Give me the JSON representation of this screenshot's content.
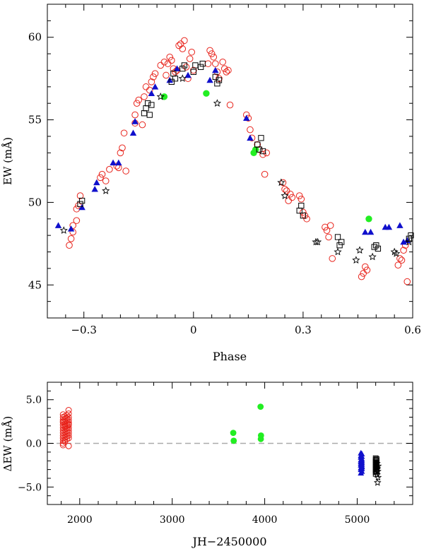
{
  "chart_data": [
    {
      "type": "scatter",
      "xlabel": "Phase",
      "ylabel": "EW (mÅ)",
      "xlim": [
        -0.4,
        0.6
      ],
      "ylim": [
        43,
        62
      ],
      "xticks": [
        -0.3,
        0,
        0.3,
        0.6
      ],
      "xtick_labels": [
        "−0.3",
        "0",
        "0.3",
        "0.6"
      ],
      "yticks": [
        45,
        50,
        55,
        60
      ],
      "ytick_labels": [
        "45",
        "50",
        "55",
        "60"
      ],
      "grid": false,
      "series": [
        {
          "name": "Set 1 (open red circles)",
          "marker": "circle-open",
          "color": "#e8241c",
          "x": [
            -0.34,
            -0.335,
            -0.33,
            -0.33,
            -0.32,
            -0.32,
            -0.315,
            -0.31,
            -0.255,
            -0.25,
            -0.24,
            -0.23,
            -0.21,
            -0.205,
            -0.2,
            -0.195,
            -0.19,
            -0.185,
            -0.16,
            -0.16,
            -0.155,
            -0.15,
            -0.14,
            -0.135,
            -0.13,
            -0.12,
            -0.115,
            -0.11,
            -0.105,
            -0.09,
            -0.08,
            -0.075,
            -0.07,
            -0.065,
            -0.06,
            -0.055,
            -0.05,
            -0.045,
            -0.04,
            -0.035,
            -0.03,
            -0.025,
            -0.02,
            -0.015,
            -0.01,
            -0.005,
            0.0,
            0.04,
            0.045,
            0.05,
            0.055,
            0.06,
            0.065,
            0.07,
            0.08,
            0.085,
            0.09,
            0.095,
            0.1,
            0.145,
            0.15,
            0.155,
            0.16,
            0.175,
            0.18,
            0.19,
            0.195,
            0.2,
            0.245,
            0.25,
            0.255,
            0.26,
            0.265,
            0.27,
            0.29,
            0.295,
            0.3,
            0.305,
            0.31,
            0.36,
            0.365,
            0.37,
            0.375,
            0.38,
            0.46,
            0.465,
            0.47,
            0.475,
            0.56,
            0.565,
            0.57,
            0.575,
            0.58,
            0.585
          ],
          "y": [
            47.4,
            47.8,
            48.2,
            48.6,
            48.9,
            49.6,
            49.8,
            50.4,
            51.5,
            51.7,
            51.3,
            52.0,
            52.2,
            52.1,
            53.0,
            53.3,
            54.2,
            51.9,
            55.3,
            54.8,
            56.0,
            56.2,
            54.7,
            56.4,
            57.0,
            56.8,
            57.3,
            57.6,
            57.8,
            58.3,
            58.5,
            57.7,
            58.4,
            58.8,
            58.6,
            58.1,
            57.9,
            58.0,
            59.5,
            59.6,
            59.3,
            59.8,
            58.2,
            57.5,
            58.7,
            59.1,
            58.0,
            58.4,
            59.2,
            59.0,
            58.8,
            58.4,
            57.9,
            57.5,
            58.5,
            58.1,
            57.9,
            58.0,
            55.9,
            55.3,
            55.1,
            54.4,
            53.9,
            53.5,
            53.2,
            52.9,
            51.7,
            53.0,
            51.2,
            50.8,
            50.7,
            50.1,
            50.5,
            50.3,
            50.4,
            50.2,
            49.4,
            49.2,
            49.0,
            48.5,
            48.3,
            47.9,
            48.6,
            46.6,
            45.5,
            45.7,
            46.1,
            45.9,
            46.2,
            46.6,
            46.5,
            47.1,
            47.4,
            45.2
          ],
          "positions_approximate": true
        },
        {
          "name": "Set 2 (filled green circles)",
          "marker": "circle-filled",
          "color": "#22ee22",
          "x": [
            -0.08,
            0.035,
            0.165,
            0.17,
            0.48
          ],
          "y": [
            56.4,
            56.6,
            53.0,
            53.2,
            49.0
          ]
        },
        {
          "name": "Set 3 (filled blue triangles)",
          "marker": "triangle-filled",
          "color": "#1010cc",
          "x": [
            -0.37,
            -0.335,
            -0.305,
            -0.27,
            -0.265,
            -0.205,
            -0.22,
            -0.165,
            -0.16,
            -0.115,
            -0.105,
            -0.065,
            -0.045,
            -0.015,
            0.06,
            0.045,
            0.145,
            0.155,
            0.47,
            0.485,
            0.525,
            0.535,
            0.565,
            0.575,
            0.585
          ],
          "y": [
            48.6,
            48.4,
            49.7,
            50.8,
            51.2,
            52.4,
            52.4,
            54.2,
            54.9,
            56.6,
            57.0,
            57.4,
            58.1,
            57.7,
            58.0,
            57.4,
            55.1,
            53.9,
            48.2,
            48.2,
            48.5,
            48.5,
            48.6,
            47.6,
            47.7
          ],
          "positions_approximate": true
        },
        {
          "name": "Set 4 (open black squares)",
          "marker": "square-open",
          "color": "#000000",
          "x": [
            -0.31,
            -0.305,
            -0.135,
            -0.13,
            -0.125,
            -0.12,
            -0.115,
            -0.06,
            -0.055,
            -0.05,
            -0.03,
            -0.025,
            0.0,
            0.005,
            0.02,
            0.025,
            0.06,
            0.065,
            0.07,
            0.175,
            0.18,
            0.185,
            0.19,
            0.29,
            0.295,
            0.3,
            0.395,
            0.4,
            0.405,
            0.495,
            0.5,
            0.505,
            0.59,
            0.595
          ],
          "y": [
            49.9,
            50.1,
            55.4,
            55.7,
            56.0,
            55.3,
            55.9,
            57.3,
            57.8,
            57.5,
            58.1,
            58.3,
            57.9,
            58.3,
            58.2,
            58.4,
            57.6,
            57.2,
            57.4,
            53.5,
            53.2,
            53.9,
            53.1,
            49.5,
            49.8,
            49.2,
            47.9,
            47.4,
            47.6,
            47.3,
            47.4,
            47.2,
            47.8,
            48.0
          ],
          "positions_approximate": true
        },
        {
          "name": "Set 5 (open black stars)",
          "marker": "star-open",
          "color": "#000000",
          "x": [
            -0.355,
            -0.24,
            -0.09,
            -0.03,
            0.065,
            0.24,
            0.25,
            0.335,
            0.34,
            0.395,
            0.445,
            0.455,
            0.49,
            0.55,
            0.555,
            0.59
          ],
          "y": [
            48.3,
            50.7,
            56.4,
            57.5,
            56.0,
            51.2,
            50.4,
            47.6,
            47.6,
            47.0,
            46.5,
            47.1,
            46.7,
            47.0,
            46.9,
            47.6
          ],
          "positions_approximate": true
        }
      ]
    },
    {
      "type": "scatter",
      "xlabel": "JH−2450000",
      "ylabel": "ΔEW (mÅ)",
      "xlim": [
        1650,
        5600
      ],
      "ylim": [
        -7,
        7
      ],
      "xticks": [
        2000,
        3000,
        4000,
        5000
      ],
      "xtick_labels": [
        "2000",
        "3000",
        "4000",
        "5000"
      ],
      "yticks": [
        -5,
        0,
        5
      ],
      "ytick_labels": [
        "−5.0",
        "0.0",
        "5.0"
      ],
      "reference_line": {
        "y": 0,
        "style": "dashed",
        "color": "#aaaaaa"
      },
      "grid": false,
      "series": [
        {
          "name": "Set 1 (open red circles)",
          "marker": "circle-open",
          "color": "#e8241c",
          "x": [
            1820,
            1820,
            1820,
            1820,
            1820,
            1820,
            1820,
            1820,
            1820,
            1820,
            1820,
            1820,
            1820,
            1820,
            1840,
            1840,
            1840,
            1840,
            1840,
            1840,
            1840,
            1840,
            1840,
            1840,
            1840,
            1840,
            1860,
            1860,
            1860,
            1860,
            1860,
            1860,
            1860,
            1860,
            1860,
            1860,
            1880,
            1880,
            1880,
            1880,
            1880,
            1880,
            1880,
            1880,
            1880,
            1880,
            1880,
            1880,
            1880
          ],
          "y": [
            3.0,
            2.7,
            2.4,
            2.1,
            1.8,
            1.5,
            1.2,
            0.9,
            0.6,
            0.3,
            0.0,
            -0.2,
            3.3,
            2.5,
            3.1,
            2.8,
            2.5,
            2.2,
            1.9,
            1.6,
            1.3,
            1.0,
            0.7,
            0.4,
            0.2,
            2.0,
            2.9,
            2.6,
            2.3,
            2.0,
            1.7,
            1.4,
            1.1,
            0.8,
            0.5,
            3.2,
            3.8,
            3.4,
            3.0,
            2.7,
            2.4,
            2.1,
            1.8,
            1.5,
            1.2,
            0.9,
            0.6,
            -0.3,
            2.2
          ],
          "positions_approximate": true
        },
        {
          "name": "Set 2 (filled green circles)",
          "marker": "circle-filled",
          "color": "#22ee22",
          "x": [
            3660,
            3665,
            3955,
            3960,
            3958
          ],
          "y": [
            1.2,
            0.3,
            4.2,
            0.9,
            0.5
          ]
        },
        {
          "name": "Set 3 (filled blue triangles)",
          "marker": "triangle-filled",
          "color": "#1010cc",
          "x": [
            5040,
            5040,
            5040,
            5040,
            5040,
            5040,
            5040,
            5040,
            5040,
            5040,
            5050,
            5050,
            5050,
            5050,
            5050,
            5050,
            5050,
            5050,
            5050,
            5050
          ],
          "y": [
            -1.1,
            -1.4,
            -1.6,
            -1.9,
            -2.1,
            -2.3,
            -2.5,
            -2.8,
            -3.0,
            -3.4,
            -1.2,
            -1.5,
            -1.8,
            -2.0,
            -2.2,
            -2.4,
            -2.7,
            -2.9,
            -3.2,
            -2.6
          ],
          "positions_approximate": true
        },
        {
          "name": "Set 4 (open black squares)",
          "marker": "square-open",
          "color": "#000000",
          "x": [
            5200,
            5200,
            5200,
            5200,
            5200,
            5200,
            5200,
            5200,
            5200,
            5200,
            5210,
            5210,
            5210,
            5210,
            5210,
            5210,
            5210,
            5210
          ],
          "y": [
            -1.7,
            -1.9,
            -2.1,
            -2.3,
            -2.5,
            -2.7,
            -2.9,
            -3.1,
            -3.3,
            -3.5,
            -1.8,
            -2.0,
            -2.2,
            -2.4,
            -2.6,
            -2.8,
            -3.0,
            -3.2
          ],
          "positions_approximate": true
        },
        {
          "name": "Set 5 (open black stars)",
          "marker": "star-open",
          "color": "#000000",
          "x": [
            5220,
            5225,
            5215,
            5222,
            5218,
            5226,
            5214
          ],
          "y": [
            -4.5,
            -3.9,
            -3.6,
            -3.2,
            -2.9,
            -2.6,
            -2.3
          ],
          "positions_approximate": true
        }
      ]
    }
  ]
}
